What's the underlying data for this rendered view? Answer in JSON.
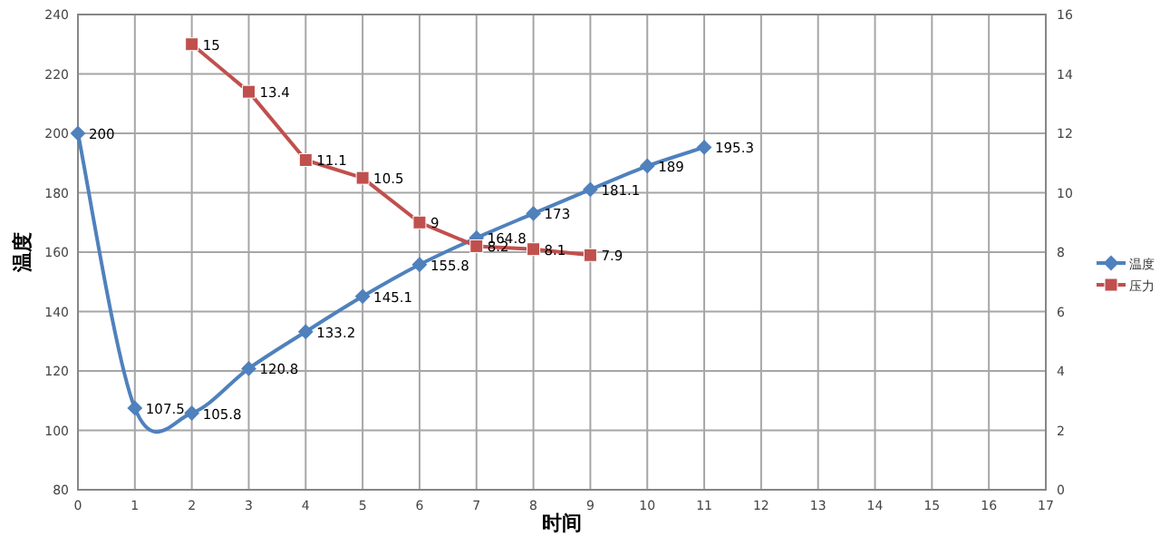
{
  "chart_data": {
    "type": "line",
    "xlabel": "时间",
    "ylabel": "温度",
    "xlim": [
      0,
      17
    ],
    "xticks": [
      0,
      1,
      2,
      3,
      4,
      5,
      6,
      7,
      8,
      9,
      10,
      11,
      12,
      13,
      14,
      15,
      16,
      17
    ],
    "ylim": [
      80,
      240
    ],
    "yticks": [
      80,
      100,
      120,
      140,
      160,
      180,
      200,
      220,
      240
    ],
    "y2lim": [
      0,
      16
    ],
    "y2ticks": [
      0,
      2,
      4,
      6,
      8,
      10,
      12,
      14,
      16
    ],
    "grid": true,
    "legend": "right",
    "data_labels": true,
    "series": [
      {
        "name": "温度",
        "color": "#4f81bd",
        "marker": "diamond",
        "x": [
          0,
          1,
          2,
          3,
          4,
          5,
          6,
          7,
          8,
          9,
          10,
          11
        ],
        "values": [
          200,
          107.5,
          105.8,
          120.8,
          133.2,
          145.1,
          155.8,
          164.8,
          173,
          181.1,
          189,
          195.3
        ]
      },
      {
        "name": "压力",
        "color": "#c0504d",
        "marker": "square",
        "axis": "y2",
        "x": [
          2,
          3,
          4,
          5,
          6,
          7,
          8,
          9
        ],
        "values": [
          15,
          13.4,
          11.1,
          10.5,
          9,
          8.2,
          8.1,
          7.9
        ]
      }
    ]
  }
}
